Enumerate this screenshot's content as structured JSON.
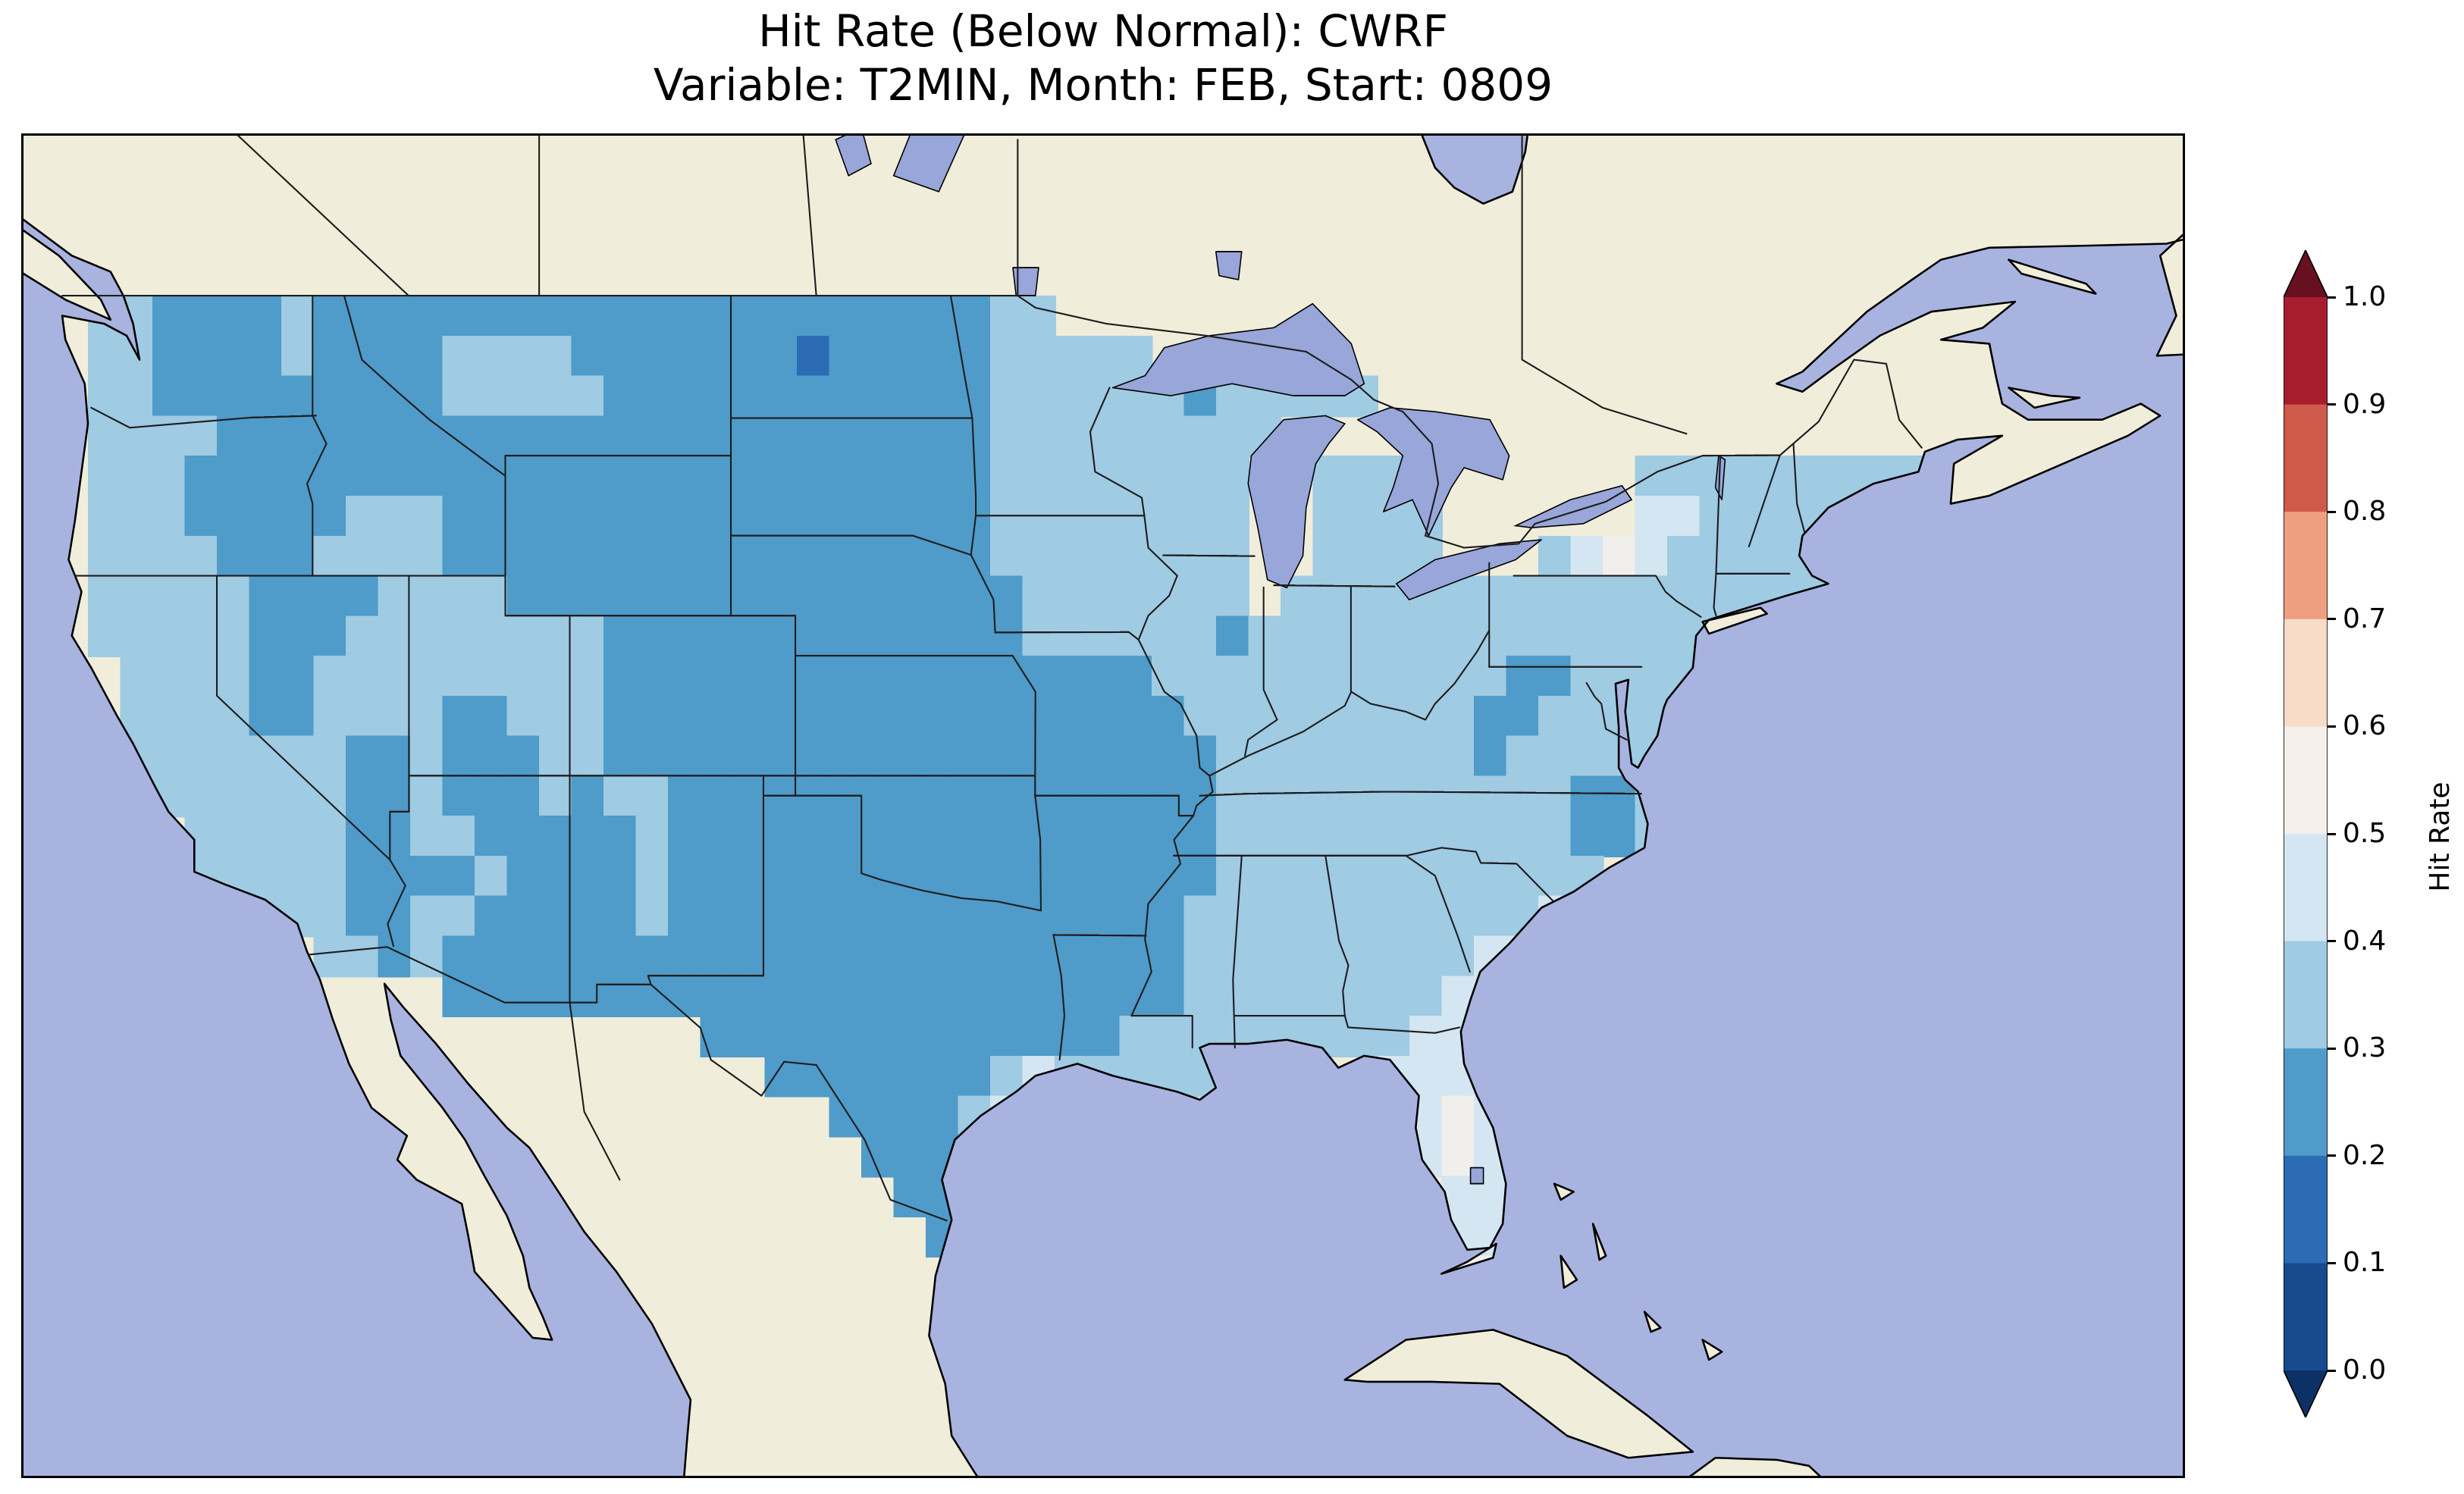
{
  "figure": {
    "title_line1": "Hit Rate (Below Normal): CWRF",
    "title_line2": "Variable: T2MIN, Month: FEB, Start: 0809"
  },
  "chart_data": {
    "type": "heatmap",
    "title": "Hit Rate (Below Normal): CWRF",
    "subtitle": "Variable: T2MIN, Month: FEB, Start: 0809",
    "metric": "Hit Rate (Below Normal)",
    "model": "CWRF",
    "variable": "T2MIN",
    "month": "FEB",
    "start": "0809",
    "colorbar": {
      "label": "Hit Rate",
      "tick_labels_top_to_bottom": [
        "1.0",
        "0.9",
        "0.8",
        "0.7",
        "0.6",
        "0.5",
        "0.4",
        "0.3",
        "0.2",
        "0.1",
        "0.0"
      ],
      "segment_colors_top_to_bottom": [
        "#a81d2e",
        "#cf5a4b",
        "#ef9f80",
        "#f9dcc7",
        "#f5f0ea",
        "#d4e6f1",
        "#9fcbe3",
        "#4f9bc9",
        "#2b6cb5",
        "#174a8f"
      ],
      "arrow_top_color": "#67101f",
      "arrow_bottom_color": "#0c3166"
    },
    "map": {
      "extent": {
        "lon_min": -126,
        "lon_max": -59,
        "lat_min": 19.5,
        "lat_max": 53
      },
      "cell_deg": 1,
      "value_bins": {
        "a": "0.1-0.2",
        "b": "0.2-0.3",
        "c": "0.3-0.4",
        "d": "0.4-0.5",
        "e": "0.5-0.6"
      },
      "palette": {
        "a": "#2b6cb5",
        "b": "#4f9bc9",
        "c": "#9fcbe3",
        "d": "#d4e6f1",
        "e": "#f1efeb"
      },
      "grid_rows_rle": [
        "",
        "",
        "",
        "",
        "2.2c4b1c21b2c",
        "2.2c4b1c4b4c7b1a5b5c",
        "2.2c9b5c12b6c1b5c",
        "2.4c24b9c",
        "2.3c25b8c2.3c7.9c",
        "2.3c5b3c17b8c2.4c6.2d6c",
        "2.4c3b4c17b8c2.4c3.1c1d1e1d6c",
        "2.5c4b4c16b7c1.17c",
        "2.5c3b8c13b6c1b15c",
        "3.4c2b9c17b11c2b5c",
        "3.4c2b4c2b3c18b9c2b5c",
        "3.7c2b1c3b2c19b8c1b5c",
        "4.6c2b1c3b1c1b2c17b11c2b1c",
        "5.5c2b2c5b1c17b11c2b1c",
        "5.5c4b1c4b1c17b12c",
        "7.3c2b2c5b1c16b11c1d",
        "9.2c1b1c23b9c2d",
        "13.23b8c2d",
        "21.13b9c3d",
        "23.7b1c1d5c5.4d",
        "25.4b1c1d12.1d1e1d",
        "26.3b1c13.1d1e1d",
        "27.2b1c14.2d",
        "28.1b15.2d",
        "44.2e",
        "",
        "",
        "",
        "",
        ""
      ]
    },
    "colors": {
      "ocean": "#a9b3e0",
      "land": "#f0edda",
      "lake": "#98a6d9",
      "coastline": "#000000",
      "borders": "#1c1c1c"
    }
  }
}
